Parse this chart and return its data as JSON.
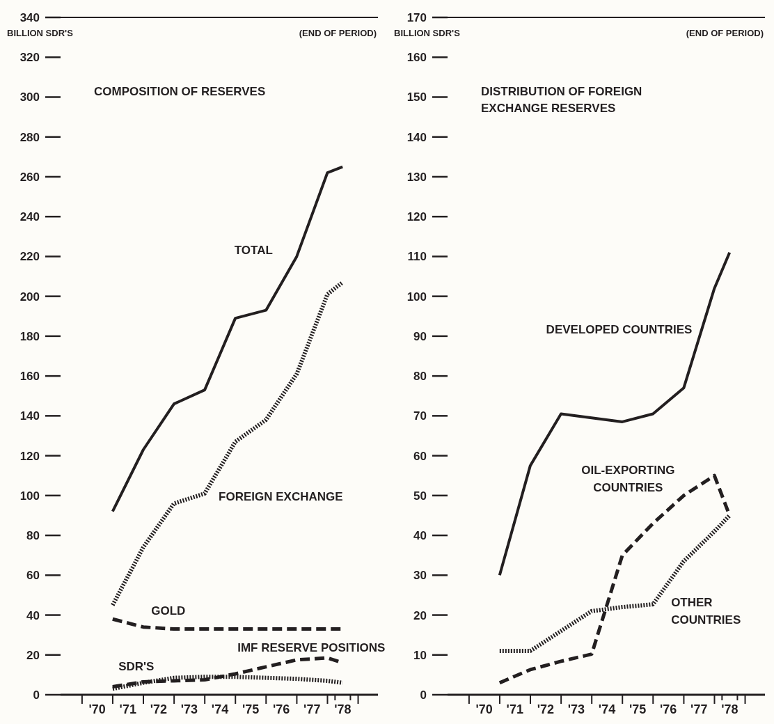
{
  "chart_data": [
    {
      "type": "line",
      "title": "COMPOSITION OF RESERVES",
      "ylabel": "BILLION SDR'S",
      "annotations": [
        "(END OF PERIOD)"
      ],
      "x": [
        "1970-12-31",
        "1971-12-31",
        "1972-12-31",
        "1973-12-31",
        "1974-12-31",
        "1975-12-31",
        "1976-12-31",
        "1977-12-31",
        "1978-06-30"
      ],
      "xlim": [
        "1969-04-20",
        "1979-08-25"
      ],
      "xticks": [
        {
          "value": "1970-01-01",
          "label": null
        },
        {
          "value": "1970-07-01",
          "label": "'70"
        },
        {
          "value": "1971-01-01",
          "label": null
        },
        {
          "value": "1971-07-01",
          "label": "'71"
        },
        {
          "value": "1972-01-01",
          "label": null
        },
        {
          "value": "1972-07-01",
          "label": "'72"
        },
        {
          "value": "1973-01-01",
          "label": null
        },
        {
          "value": "1973-07-01",
          "label": "'73"
        },
        {
          "value": "1974-01-01",
          "label": null
        },
        {
          "value": "1974-07-01",
          "label": "'74"
        },
        {
          "value": "1975-01-01",
          "label": null
        },
        {
          "value": "1975-07-01",
          "label": "'75"
        },
        {
          "value": "1976-01-01",
          "label": null
        },
        {
          "value": "1976-07-01",
          "label": "'76"
        },
        {
          "value": "1977-01-01",
          "label": null
        },
        {
          "value": "1977-07-01",
          "label": "'77"
        },
        {
          "value": "1978-01-01",
          "label": null
        },
        {
          "value": "1978-04-01",
          "label": null
        },
        {
          "value": "1978-07-01",
          "label": "'78"
        },
        {
          "value": "1978-10-01",
          "label": null
        },
        {
          "value": "1979-01-01",
          "label": null
        }
      ],
      "ylim": [
        0,
        340
      ],
      "yticks": [
        0,
        20,
        40,
        60,
        80,
        100,
        120,
        140,
        160,
        180,
        200,
        220,
        240,
        260,
        280,
        300,
        320,
        340
      ],
      "grid": false,
      "legend": false,
      "marker": "none",
      "series": [
        {
          "name": "TOTAL",
          "color": "#231f20",
          "line_style": "solid",
          "values": [
            92,
            123,
            146,
            153,
            189,
            193,
            220,
            262,
            265
          ]
        },
        {
          "name": "FOREIGN EXCHANGE",
          "color": "#231f20",
          "line_style": "dotted",
          "values": [
            45,
            74,
            96,
            101,
            127,
            138,
            161,
            201,
            207
          ]
        },
        {
          "name": "GOLD",
          "color": "#231f20",
          "line_style": "dashed",
          "values": [
            38,
            34,
            33,
            33,
            33,
            33,
            33,
            33,
            33
          ]
        },
        {
          "name": "IMF RESERVE POSITIONS",
          "color": "#231f20",
          "line_style": "dashed",
          "values": [
            4,
            6.5,
            7,
            7.5,
            10.5,
            14,
            17.5,
            18.5,
            16
          ]
        },
        {
          "name": "SDR'S",
          "color": "#231f20",
          "line_style": "dotted",
          "values": [
            3,
            6,
            8.5,
            9,
            9,
            8.5,
            8,
            7,
            6
          ]
        }
      ]
    },
    {
      "type": "line",
      "title": "DISTRIBUTION OF FOREIGN EXCHANGE RESERVES",
      "ylabel": "BILLION SDR'S",
      "annotations": [
        "(END OF PERIOD)"
      ],
      "x": [
        "1970-12-31",
        "1971-12-31",
        "1972-12-31",
        "1973-12-31",
        "1974-12-31",
        "1975-12-31",
        "1976-12-31",
        "1977-12-31",
        "1978-06-30"
      ],
      "xlim": [
        "1969-04-20",
        "1979-08-25"
      ],
      "xticks": [
        {
          "value": "1970-01-01",
          "label": null
        },
        {
          "value": "1970-07-01",
          "label": "'70"
        },
        {
          "value": "1971-01-01",
          "label": null
        },
        {
          "value": "1971-07-01",
          "label": "'71"
        },
        {
          "value": "1972-01-01",
          "label": null
        },
        {
          "value": "1972-07-01",
          "label": "'72"
        },
        {
          "value": "1973-01-01",
          "label": null
        },
        {
          "value": "1973-07-01",
          "label": "'73"
        },
        {
          "value": "1974-01-01",
          "label": null
        },
        {
          "value": "1974-07-01",
          "label": "'74"
        },
        {
          "value": "1975-01-01",
          "label": null
        },
        {
          "value": "1975-07-01",
          "label": "'75"
        },
        {
          "value": "1976-01-01",
          "label": null
        },
        {
          "value": "1976-07-01",
          "label": "'76"
        },
        {
          "value": "1977-01-01",
          "label": null
        },
        {
          "value": "1977-07-01",
          "label": "'77"
        },
        {
          "value": "1978-01-01",
          "label": null
        },
        {
          "value": "1978-04-01",
          "label": null
        },
        {
          "value": "1978-07-01",
          "label": "'78"
        },
        {
          "value": "1978-10-01",
          "label": null
        },
        {
          "value": "1979-01-01",
          "label": null
        }
      ],
      "ylim": [
        0,
        170
      ],
      "yticks": [
        0,
        10,
        20,
        30,
        40,
        50,
        60,
        70,
        80,
        90,
        100,
        110,
        120,
        130,
        140,
        150,
        160,
        170
      ],
      "grid": false,
      "legend": false,
      "marker": "none",
      "series": [
        {
          "name": "DEVELOPED COUNTRIES",
          "color": "#231f20",
          "line_style": "solid",
          "values": [
            30,
            57.5,
            70.5,
            69.5,
            68.5,
            70.5,
            77,
            102,
            111
          ]
        },
        {
          "name": "OIL-EXPORTING COUNTRIES",
          "color": "#231f20",
          "line_style": "dashed",
          "values": [
            3,
            6.3,
            8.4,
            10.2,
            35,
            43,
            50,
            55,
            45
          ]
        },
        {
          "name": "OTHER COUNTRIES",
          "color": "#231f20",
          "line_style": "dotted",
          "values": [
            11,
            11,
            16,
            21,
            22,
            22.7,
            33.5,
            41,
            45
          ]
        }
      ]
    }
  ]
}
